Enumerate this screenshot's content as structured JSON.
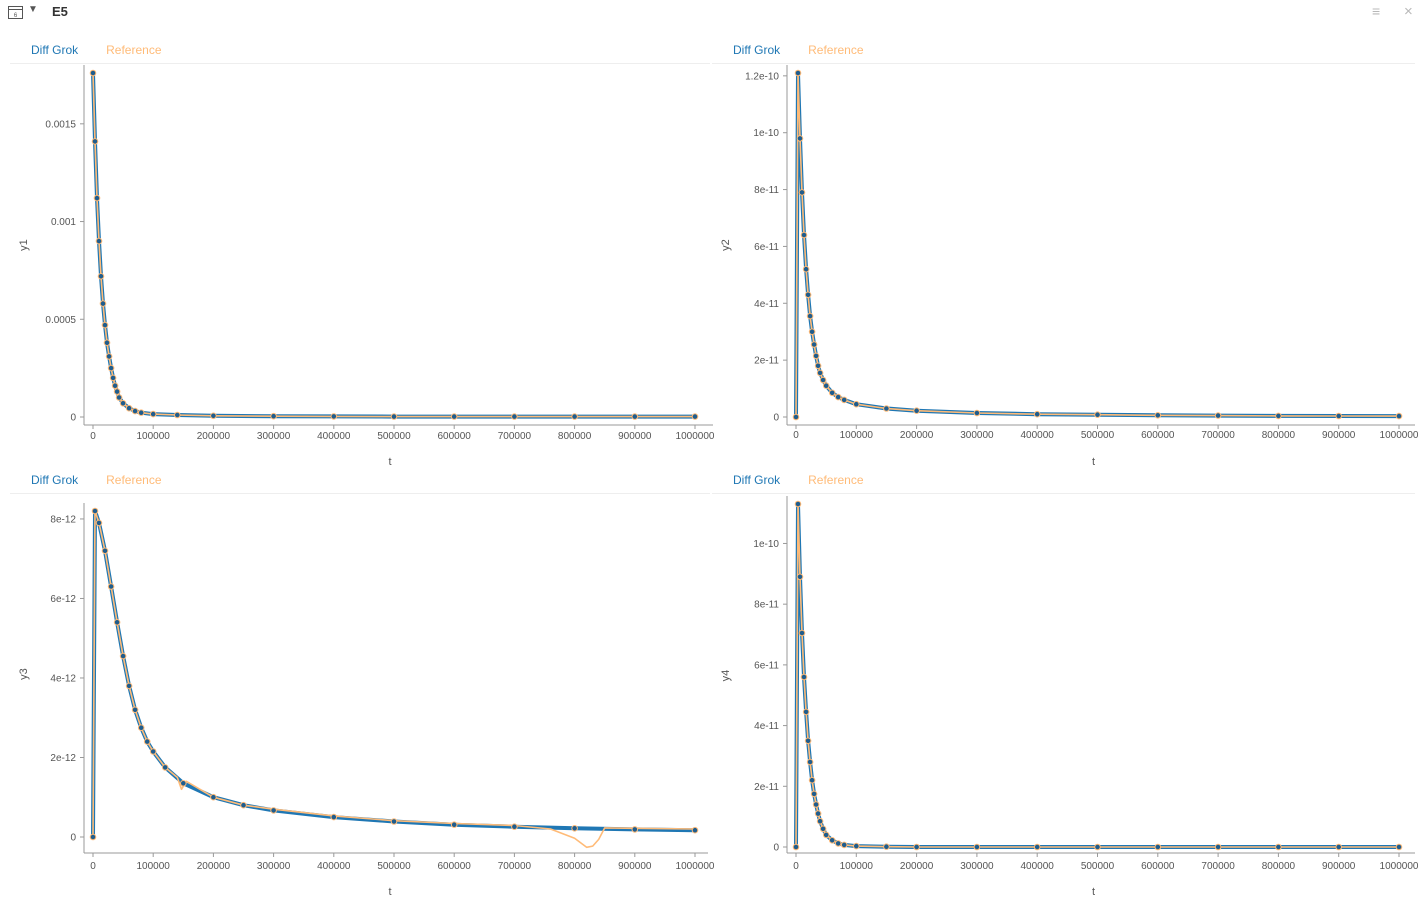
{
  "header": {
    "icon": "table-view-icon",
    "title": "E5",
    "menu_icon": "hamburger-menu-icon",
    "close_icon": "close-icon"
  },
  "colors": {
    "diff_grok": "#1f77b4",
    "reference": "#ffbb78",
    "marker_fill": "#1f5d8e",
    "marker_stroke": "#ffbb78"
  },
  "chart_data": [
    {
      "type": "line",
      "legend": [
        "Diff Grok",
        "Reference"
      ],
      "xlabel": "t",
      "ylabel": "y1",
      "xlim": [
        0,
        1000000
      ],
      "ylim": [
        0,
        0.00176
      ],
      "x_ticks": [
        0,
        100000,
        200000,
        300000,
        400000,
        500000,
        600000,
        700000,
        800000,
        900000,
        1000000
      ],
      "x_tick_labels": [
        "0",
        "100000",
        "200000",
        "300000",
        "400000",
        "500000",
        "600000",
        "700000",
        "800000",
        "900000",
        "1000000"
      ],
      "y_ticks": [
        0,
        0.0005,
        0.001,
        0.0015
      ],
      "y_tick_labels": [
        "0",
        "0.0005",
        "0.001",
        "0.0015"
      ],
      "series": [
        {
          "name": "Diff Grok",
          "x": [
            0,
            3333,
            6667,
            10000,
            13333,
            16667,
            20000,
            23333,
            26667,
            30000,
            33333,
            36667,
            40000,
            43333,
            50000,
            60000,
            70000,
            80000,
            100000,
            140000,
            200000,
            300000,
            400000,
            500000,
            600000,
            700000,
            800000,
            900000,
            1000000
          ],
          "values": [
            0.00176,
            0.00141,
            0.00112,
            0.0009,
            0.00072,
            0.00058,
            0.00047,
            0.00038,
            0.00031,
            0.00025,
            0.0002,
            0.00016,
            0.00013,
            0.0001,
            7e-05,
            4.5e-05,
            3e-05,
            2.2e-05,
            1.5e-05,
            1e-05,
            6e-06,
            4e-06,
            3e-06,
            2e-06,
            2e-06,
            2e-06,
            2e-06,
            2e-06,
            2e-06
          ]
        },
        {
          "name": "Reference",
          "x": [
            0,
            3333,
            6667,
            10000,
            13333,
            16667,
            20000,
            23333,
            26667,
            30000,
            33333,
            36667,
            40000,
            43333,
            50000,
            60000,
            70000,
            80000,
            100000,
            140000,
            200000,
            300000,
            400000,
            500000,
            600000,
            700000,
            800000,
            900000,
            1000000
          ],
          "values": [
            0.00176,
            0.00141,
            0.00112,
            0.0009,
            0.00072,
            0.00058,
            0.00047,
            0.00038,
            0.00031,
            0.00025,
            0.0002,
            0.00016,
            0.00013,
            0.0001,
            7e-05,
            4.5e-05,
            3e-05,
            2.2e-05,
            1.5e-05,
            1e-05,
            6e-06,
            4e-06,
            3e-06,
            2e-06,
            2e-06,
            2e-06,
            2e-06,
            2e-06,
            2e-06
          ]
        }
      ]
    },
    {
      "type": "line",
      "legend": [
        "Diff Grok",
        "Reference"
      ],
      "xlabel": "t",
      "ylabel": "y2",
      "xlim": [
        0,
        1000000
      ],
      "ylim": [
        0,
        1.21e-10
      ],
      "x_ticks": [
        0,
        100000,
        200000,
        300000,
        400000,
        500000,
        600000,
        700000,
        800000,
        900000,
        1000000
      ],
      "x_tick_labels": [
        "0",
        "100000",
        "200000",
        "300000",
        "400000",
        "500000",
        "600000",
        "700000",
        "800000",
        "900000",
        "1000000"
      ],
      "y_ticks": [
        0,
        2e-11,
        4e-11,
        6e-11,
        8e-11,
        1e-10,
        1.2e-10
      ],
      "y_tick_labels": [
        "0",
        "2e-11",
        "4e-11",
        "6e-11",
        "8e-11",
        "1e-10",
        "1.2e-10"
      ],
      "series": [
        {
          "name": "Diff Grok",
          "x": [
            0,
            3333,
            6667,
            10000,
            13333,
            16667,
            20000,
            23333,
            26667,
            30000,
            33333,
            36667,
            40000,
            45000,
            50000,
            60000,
            70000,
            80000,
            100000,
            150000,
            200000,
            300000,
            400000,
            500000,
            600000,
            700000,
            800000,
            900000,
            1000000
          ],
          "values": [
            0,
            1.21e-10,
            9.8e-11,
            7.9e-11,
            6.4e-11,
            5.2e-11,
            4.3e-11,
            3.55e-11,
            3e-11,
            2.55e-11,
            2.15e-11,
            1.8e-11,
            1.55e-11,
            1.3e-11,
            1.1e-11,
            8.5e-12,
            7e-12,
            6e-12,
            4.5e-12,
            3e-12,
            2.2e-12,
            1.4e-12,
            1e-12,
            8e-13,
            6e-13,
            5e-13,
            4e-13,
            3.5e-13,
            3e-13
          ]
        },
        {
          "name": "Reference",
          "x": [
            0,
            3333,
            6667,
            10000,
            13333,
            16667,
            20000,
            23333,
            26667,
            30000,
            33333,
            36667,
            40000,
            45000,
            50000,
            60000,
            70000,
            80000,
            100000,
            150000,
            200000,
            300000,
            400000,
            500000,
            600000,
            700000,
            800000,
            900000,
            1000000
          ],
          "values": [
            0,
            1.21e-10,
            9.8e-11,
            7.9e-11,
            6.4e-11,
            5.2e-11,
            4.3e-11,
            3.55e-11,
            3e-11,
            2.55e-11,
            2.15e-11,
            1.8e-11,
            1.55e-11,
            1.3e-11,
            1.1e-11,
            8.5e-12,
            7e-12,
            6e-12,
            4.5e-12,
            3e-12,
            2.2e-12,
            1.4e-12,
            1e-12,
            8e-13,
            6e-13,
            5e-13,
            4e-13,
            3.5e-13,
            3e-13
          ]
        }
      ]
    },
    {
      "type": "line",
      "legend": [
        "Diff Grok",
        "Reference"
      ],
      "xlabel": "t",
      "ylabel": "y3",
      "xlim": [
        0,
        1000000
      ],
      "ylim": [
        0,
        8.2e-12
      ],
      "x_ticks": [
        0,
        100000,
        200000,
        300000,
        400000,
        500000,
        600000,
        700000,
        800000,
        900000,
        1000000
      ],
      "x_tick_labels": [
        "0",
        "100000",
        "200000",
        "300000",
        "400000",
        "500000",
        "600000",
        "700000",
        "800000",
        "900000",
        "1000000"
      ],
      "y_ticks": [
        0,
        2e-12,
        4e-12,
        6e-12,
        8e-12
      ],
      "y_tick_labels": [
        "0",
        "2e-12",
        "4e-12",
        "6e-12",
        "8e-12"
      ],
      "series": [
        {
          "name": "Diff Grok",
          "x": [
            0,
            3333,
            10000,
            20000,
            30000,
            40000,
            50000,
            60000,
            70000,
            80000,
            90000,
            100000,
            120000,
            150000,
            200000,
            250000,
            300000,
            400000,
            500000,
            600000,
            700000,
            800000,
            900000,
            1000000
          ],
          "values": [
            0,
            8.2e-12,
            7.9e-12,
            7.2e-12,
            6.3e-12,
            5.4e-12,
            4.55e-12,
            3.8e-12,
            3.2e-12,
            2.75e-12,
            2.4e-12,
            2.15e-12,
            1.75e-12,
            1.35e-12,
            1e-12,
            8e-13,
            6.7e-13,
            5e-13,
            3.9e-13,
            3.1e-13,
            2.6e-13,
            2.2e-13,
            1.9e-13,
            1.7e-13
          ]
        },
        {
          "name": "Reference",
          "x": [
            0,
            3333,
            10000,
            20000,
            30000,
            40000,
            50000,
            60000,
            70000,
            80000,
            90000,
            100000,
            120000,
            140000,
            147000,
            155000,
            200000,
            250000,
            300000,
            400000,
            500000,
            600000,
            700000,
            760000,
            800000,
            820000,
            830000,
            840000,
            850000,
            900000,
            1000000
          ],
          "values": [
            0,
            8.2e-12,
            7.9e-12,
            7.2e-12,
            6.3e-12,
            5.4e-12,
            4.55e-12,
            3.8e-12,
            3.2e-12,
            2.75e-12,
            2.4e-12,
            2.15e-12,
            1.75e-12,
            1.5e-12,
            1.2e-12,
            1.4e-12,
            1e-12,
            8e-13,
            7e-13,
            5.3e-13,
            4.1e-13,
            3.4e-13,
            2.9e-13,
            2e-13,
            -3e-14,
            -2.6e-13,
            -2.3e-13,
            -6e-14,
            2.3e-13,
            2.2e-13,
            2e-13
          ]
        }
      ]
    },
    {
      "type": "line",
      "legend": [
        "Diff Grok",
        "Reference"
      ],
      "xlabel": "t",
      "ylabel": "y4",
      "xlim": [
        0,
        1000000
      ],
      "ylim": [
        0,
        1.13e-10
      ],
      "x_ticks": [
        0,
        100000,
        200000,
        300000,
        400000,
        500000,
        600000,
        700000,
        800000,
        900000,
        1000000
      ],
      "x_tick_labels": [
        "0",
        "100000",
        "200000",
        "300000",
        "400000",
        "500000",
        "600000",
        "700000",
        "800000",
        "900000",
        "1000000"
      ],
      "y_ticks": [
        0,
        2e-11,
        4e-11,
        6e-11,
        8e-11,
        1e-10
      ],
      "y_tick_labels": [
        "0",
        "2e-11",
        "4e-11",
        "6e-11",
        "8e-11",
        "1e-10"
      ],
      "series": [
        {
          "name": "Diff Grok",
          "x": [
            0,
            3333,
            6667,
            10000,
            13333,
            16667,
            20000,
            23333,
            26667,
            30000,
            33333,
            36667,
            40000,
            45000,
            50000,
            60000,
            70000,
            80000,
            100000,
            150000,
            200000,
            300000,
            400000,
            500000,
            600000,
            700000,
            800000,
            900000,
            1000000
          ],
          "values": [
            0,
            1.13e-10,
            8.9e-11,
            7.05e-11,
            5.6e-11,
            4.45e-11,
            3.5e-11,
            2.8e-11,
            2.2e-11,
            1.75e-11,
            1.4e-11,
            1.1e-11,
            8.5e-12,
            6e-12,
            4e-12,
            2.2e-12,
            1.2e-12,
            7e-13,
            3e-13,
            1e-13,
            0,
            0,
            0,
            0,
            0,
            0,
            0,
            0,
            0
          ]
        },
        {
          "name": "Reference",
          "x": [
            0,
            3333,
            6667,
            10000,
            13333,
            16667,
            20000,
            23333,
            26667,
            30000,
            33333,
            36667,
            40000,
            45000,
            50000,
            60000,
            70000,
            80000,
            100000,
            150000,
            200000,
            300000,
            400000,
            500000,
            600000,
            700000,
            800000,
            900000,
            1000000
          ],
          "values": [
            0,
            1.13e-10,
            8.9e-11,
            7.05e-11,
            5.6e-11,
            4.45e-11,
            3.5e-11,
            2.8e-11,
            2.2e-11,
            1.75e-11,
            1.4e-11,
            1.1e-11,
            8.5e-12,
            6e-12,
            4e-12,
            2.2e-12,
            1.2e-12,
            7e-13,
            3e-13,
            1e-13,
            0,
            0,
            0,
            0,
            0,
            0,
            0,
            0,
            0
          ]
        }
      ]
    }
  ]
}
